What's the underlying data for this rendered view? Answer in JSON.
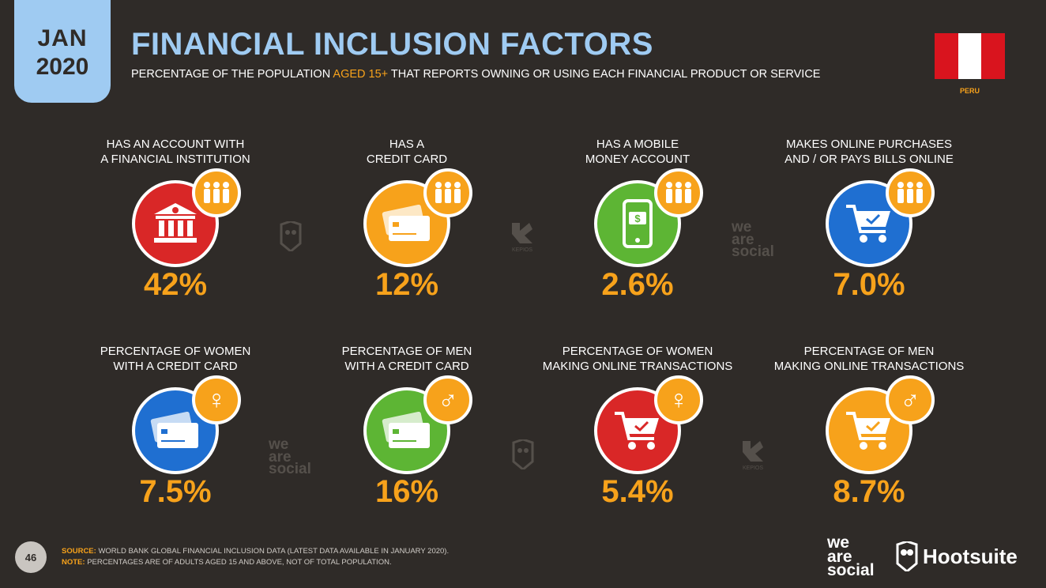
{
  "header": {
    "date_month": "JAN",
    "date_year": "2020",
    "title": "FINANCIAL INCLUSION FACTORS",
    "subtitle_before": "PERCENTAGE OF THE POPULATION",
    "subtitle_highlight": "AGED 15+",
    "subtitle_after": "THAT REPORTS OWNING OR USING EACH FINANCIAL PRODUCT OR SERVICE",
    "country": "PERU"
  },
  "colors": {
    "background": "#2f2b28",
    "accent_orange": "#f7a21b",
    "title_blue": "#9fcbf2",
    "red": "#d92727",
    "orange": "#f7a21b",
    "green": "#5db534",
    "blue": "#1f6fd1"
  },
  "tiles": [
    {
      "label_line1": "HAS AN ACCOUNT WITH",
      "label_line2": "A FINANCIAL INSTITUTION",
      "value": "42%",
      "icon": "bank-icon",
      "badge": "people-icon"
    },
    {
      "label_line1": "HAS A",
      "label_line2": "CREDIT CARD",
      "value": "12%",
      "icon": "credit-card-icon",
      "badge": "people-icon"
    },
    {
      "label_line1": "HAS A MOBILE",
      "label_line2": "MONEY ACCOUNT",
      "value": "2.6%",
      "icon": "mobile-money-icon",
      "badge": "people-icon"
    },
    {
      "label_line1": "MAKES ONLINE PURCHASES",
      "label_line2": "AND / OR PAYS BILLS ONLINE",
      "value": "7.0%",
      "icon": "shopping-cart-icon",
      "badge": "people-icon"
    },
    {
      "label_line1": "PERCENTAGE OF WOMEN",
      "label_line2": "WITH A CREDIT CARD",
      "value": "7.5%",
      "icon": "credit-card-icon",
      "badge": "female-symbol-icon",
      "badge_glyph": "♀"
    },
    {
      "label_line1": "PERCENTAGE OF MEN",
      "label_line2": "WITH A CREDIT CARD",
      "value": "16%",
      "icon": "credit-card-icon",
      "badge": "male-symbol-icon",
      "badge_glyph": "♂"
    },
    {
      "label_line1": "PERCENTAGE OF WOMEN",
      "label_line2": "MAKING ONLINE TRANSACTIONS",
      "value": "5.4%",
      "icon": "shopping-cart-icon",
      "badge": "female-symbol-icon",
      "badge_glyph": "♀"
    },
    {
      "label_line1": "PERCENTAGE OF MEN",
      "label_line2": "MAKING ONLINE TRANSACTIONS",
      "value": "8.7%",
      "icon": "shopping-cart-icon",
      "badge": "male-symbol-icon",
      "badge_glyph": "♂"
    }
  ],
  "watermarks": {
    "we_are_social": "we are social",
    "kepios": "KEPIOS"
  },
  "footer": {
    "page_number": "46",
    "source_label": "SOURCE:",
    "source_text": "WORLD BANK GLOBAL FINANCIAL INCLUSION DATA (LATEST DATA AVAILABLE IN JANUARY 2020).",
    "note_label": "NOTE:",
    "note_text": "PERCENTAGES ARE OF ADULTS AGED 15 AND ABOVE, NOT OF TOTAL POPULATION.",
    "brand_was_1": "we",
    "brand_was_2": "are",
    "brand_was_3": "social",
    "brand_hootsuite": "Hootsuite"
  }
}
